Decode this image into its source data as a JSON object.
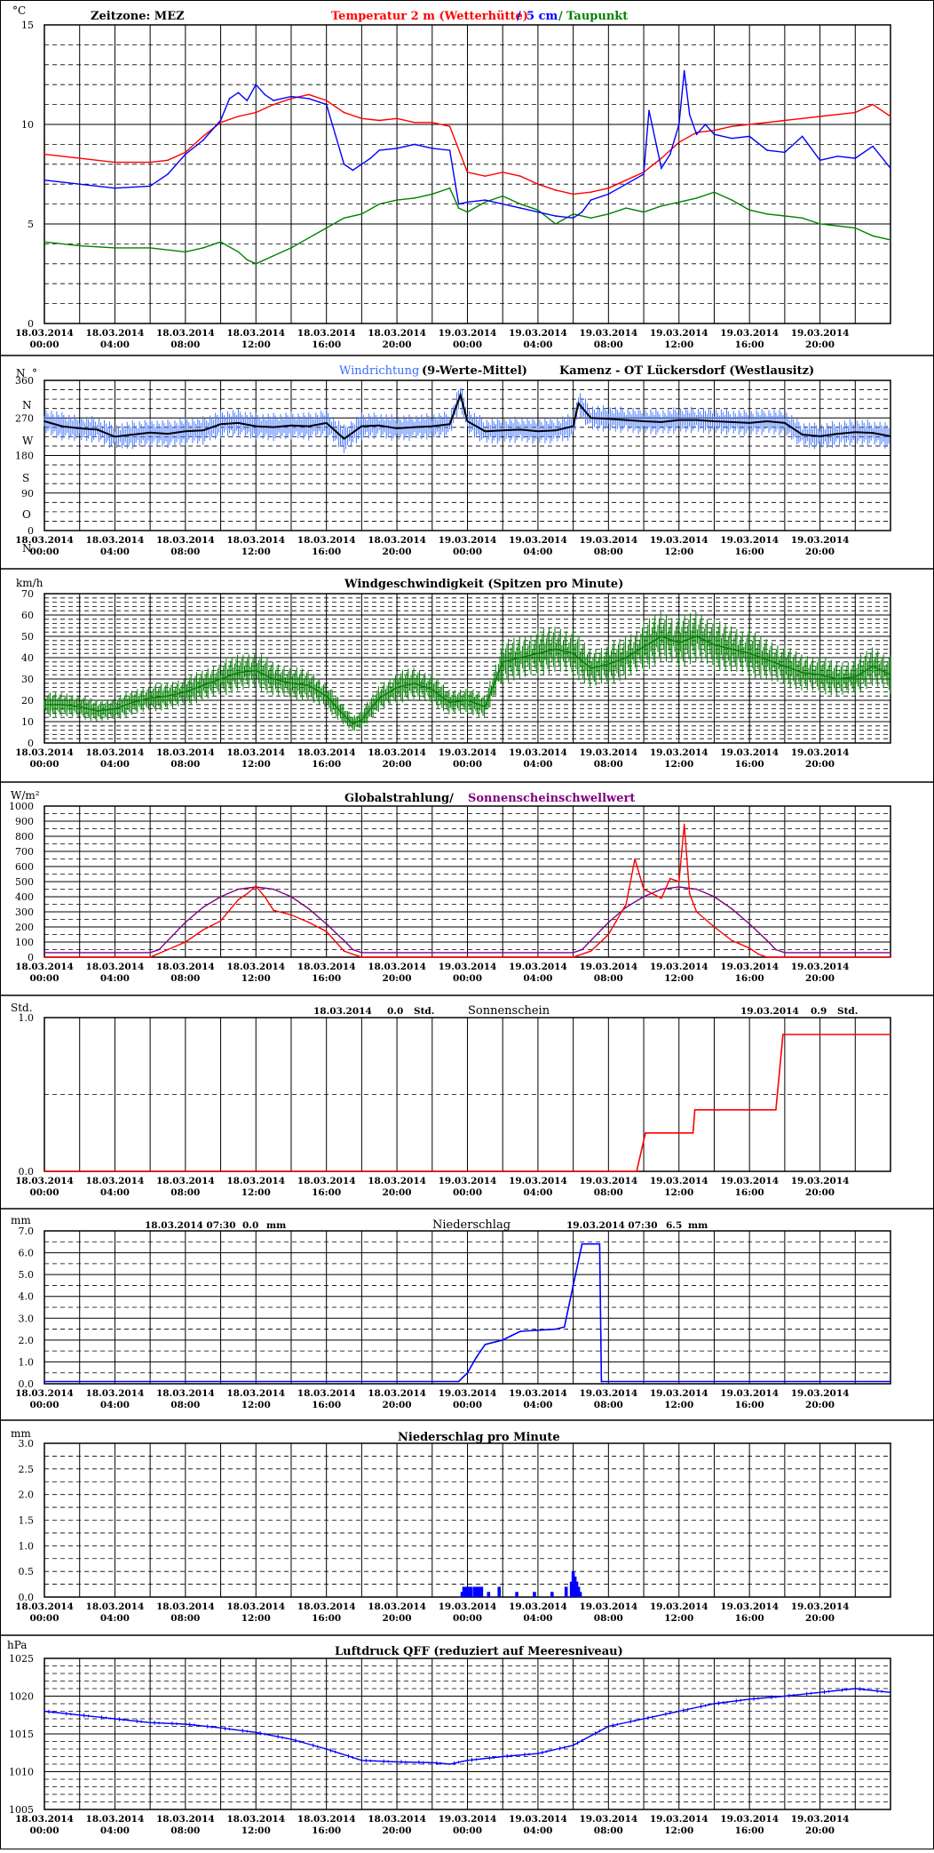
{
  "x_axis": {
    "dates": [
      "18.03.2014",
      "18.03.2014",
      "18.03.2014",
      "18.03.2014",
      "18.03.2014",
      "18.03.2014",
      "19.03.2014",
      "19.03.2014",
      "19.03.2014",
      "19.03.2014",
      "19.03.2014",
      "19.03.2014"
    ],
    "times": [
      "00:00",
      "04:00",
      "08:00",
      "12:00",
      "16:00",
      "20:00",
      "00:00",
      "04:00",
      "08:00",
      "12:00",
      "16:00",
      "20:00"
    ],
    "range_hours": [
      0,
      48
    ]
  },
  "colors": {
    "frame": "#000000",
    "temp_air": "#ff0000",
    "temp_5cm": "#0000ff",
    "dewpoint": "#008000",
    "wind_dir_raw": "#4b7bff",
    "wind_dir_avg": "#000000",
    "wind_speed": "#008000",
    "radiation": "#ff0000",
    "threshold": "#800080",
    "sunshine": "#ff0000",
    "precip": "#0000ff",
    "pressure": "#0000ff"
  },
  "panels": {
    "temperature": {
      "unit": "°C",
      "zone": "Zeitzone: MEZ",
      "title_red": "Temperatur 2 m (Wetterhütte)",
      "title_sep": "/",
      "title_blue": "5 cm",
      "title_sep2": "/",
      "title_green": "Taupunkt",
      "yticks": [
        "15",
        "10",
        "5",
        "0"
      ]
    },
    "wind_direction": {
      "unit": "N",
      "degree": "°",
      "title_blue": "Windrichtung",
      "title_black": "(9-Werte-Mittel)",
      "station": "Kamenz - OT Lückersdorf (Westlausitz)",
      "yticks": [
        "360",
        "270",
        "180",
        "90",
        "0"
      ],
      "compass": [
        "N",
        "W",
        "S",
        "O",
        "N"
      ]
    },
    "wind_speed": {
      "unit": "km/h",
      "title": "Windgeschwindigkeit (Spitzen pro Minute)",
      "yticks": [
        "70",
        "60",
        "50",
        "40",
        "30",
        "20",
        "10",
        "0"
      ]
    },
    "radiation": {
      "unit": "W/m²",
      "title_black": "Globalstrahlung/",
      "title_purple": "Sonnenscheinschwellwert",
      "yticks": [
        "1000",
        "900",
        "800",
        "700",
        "600",
        "500",
        "400",
        "300",
        "200",
        "100",
        "0"
      ]
    },
    "sunshine": {
      "unit": "Std.",
      "title": "Sonnenschein",
      "day1_date": "18.03.2014",
      "day1_value": "0.0",
      "day1_unit": "Std.",
      "day2_date": "19.03.2014",
      "day2_value": "0.9",
      "day2_unit": "Std.",
      "yticks": [
        "1.0",
        "0.0"
      ]
    },
    "precipitation": {
      "unit": "mm",
      "title": "Niederschlag",
      "day1_label": "18.03.2014 07:30",
      "day1_value": "0.0",
      "day1_unit": "mm",
      "day2_label": "19.03.2014 07:30",
      "day2_value": "6.5",
      "day2_unit": "mm",
      "yticks": [
        "7.0",
        "6.0",
        "5.0",
        "4.0",
        "3.0",
        "2.0",
        "1.0",
        "0.0"
      ]
    },
    "precip_minute": {
      "unit": "mm",
      "title": "Niederschlag pro Minute",
      "yticks": [
        "3.0",
        "2.5",
        "2.0",
        "1.5",
        "1.0",
        "0.5",
        "0.0"
      ]
    },
    "pressure": {
      "unit": "hPa",
      "title": "Luftdruck QFF (reduziert auf Meeresniveau)",
      "yticks": [
        "1025",
        "1020",
        "1015",
        "1010",
        "1005"
      ]
    }
  },
  "chart_data": [
    {
      "type": "line",
      "title": "Temperatur 2 m (Wetterhütte) / 5 cm / Taupunkt",
      "ylabel": "°C",
      "ylim": [
        0,
        15
      ],
      "xlim_hours": [
        0,
        48
      ],
      "series": [
        {
          "name": "Temperatur 2 m (Wetterhütte)",
          "x": [
            0,
            2,
            4,
            6,
            7,
            8,
            9,
            10,
            11,
            12,
            13,
            14,
            15,
            16,
            17,
            18,
            19,
            20,
            21,
            22,
            23,
            24,
            25,
            26,
            27,
            28,
            29,
            30,
            31,
            32,
            33,
            34,
            35,
            36,
            37,
            38,
            39,
            40,
            41,
            42,
            43,
            44,
            45,
            46,
            47,
            48
          ],
          "y": [
            8.5,
            8.3,
            8.1,
            8.1,
            8.2,
            8.6,
            9.4,
            10.1,
            10.4,
            10.6,
            11,
            11.3,
            11.5,
            11.2,
            10.6,
            10.3,
            10.2,
            10.3,
            10.1,
            10.1,
            9.9,
            7.6,
            7.4,
            7.6,
            7.4,
            7,
            6.7,
            6.5,
            6.6,
            6.8,
            7.2,
            7.6,
            8.3,
            9.1,
            9.6,
            9.7,
            9.9,
            10,
            10.1,
            10.2,
            10.3,
            10.4,
            10.5,
            10.6,
            11,
            10.4
          ]
        },
        {
          "name": "5 cm",
          "x": [
            0,
            2,
            4,
            6,
            7,
            8,
            9,
            10,
            10.5,
            11,
            11.5,
            12,
            12.5,
            13,
            14,
            15,
            16,
            16.5,
            17,
            17.5,
            18,
            18.5,
            19,
            20,
            21,
            22,
            23,
            23.5,
            24,
            25,
            26,
            27,
            28,
            29,
            30,
            30.5,
            31,
            32,
            33,
            34,
            34.3,
            35,
            35.5,
            36,
            36.3,
            36.6,
            37,
            37.5,
            38,
            39,
            40,
            41,
            42,
            43,
            44,
            45,
            46,
            47,
            48
          ],
          "y": [
            7.2,
            7,
            6.8,
            6.9,
            7.5,
            8.5,
            9.2,
            10.2,
            11.3,
            11.6,
            11.2,
            12,
            11.5,
            11.2,
            11.4,
            11.3,
            11,
            9.5,
            8,
            7.7,
            8,
            8.3,
            8.7,
            8.8,
            9,
            8.8,
            8.7,
            6,
            6.1,
            6.2,
            6,
            5.8,
            5.6,
            5.4,
            5.3,
            5.6,
            6.2,
            6.5,
            7,
            7.5,
            10.7,
            7.8,
            8.5,
            10,
            12.7,
            10.5,
            9.5,
            10,
            9.5,
            9.3,
            9.4,
            8.7,
            8.6,
            9.4,
            8.2,
            8.4,
            8.3,
            8.9,
            7.8
          ]
        },
        {
          "name": "Taupunkt",
          "x": [
            0,
            2,
            4,
            6,
            8,
            9,
            10,
            11,
            11.5,
            12,
            13,
            14,
            15,
            16,
            17,
            18,
            19,
            20,
            21,
            22,
            23,
            23.5,
            24,
            25,
            26,
            27,
            28,
            29,
            30,
            31,
            32,
            33,
            34,
            35,
            36,
            37,
            38,
            39,
            40,
            41,
            42,
            43,
            44,
            45,
            46,
            47,
            48
          ],
          "y": [
            4.1,
            3.9,
            3.8,
            3.8,
            3.6,
            3.8,
            4.1,
            3.6,
            3.2,
            3,
            3.4,
            3.8,
            4.3,
            4.8,
            5.3,
            5.5,
            6,
            6.2,
            6.3,
            6.5,
            6.8,
            5.8,
            5.6,
            6.1,
            6.4,
            6,
            5.7,
            5,
            5.5,
            5.3,
            5.5,
            5.8,
            5.6,
            5.9,
            6.1,
            6.3,
            6.6,
            6.2,
            5.7,
            5.5,
            5.4,
            5.3,
            5,
            4.9,
            4.8,
            4.4,
            4.2
          ]
        }
      ]
    },
    {
      "type": "line",
      "title": "Windrichtung (9-Werte-Mittel)",
      "ylabel": "°",
      "ylim": [
        0,
        360
      ],
      "xlim_hours": [
        0,
        48
      ],
      "series": [
        {
          "name": "9-Werte-Mittel",
          "x": [
            0,
            1,
            2,
            3,
            4,
            5,
            6,
            7,
            8,
            9,
            10,
            11,
            12,
            13,
            14,
            15,
            16,
            17,
            18,
            19,
            20,
            21,
            22,
            23,
            23.6,
            24,
            25,
            26,
            27,
            28,
            29,
            30,
            30.3,
            31,
            32,
            33,
            34,
            35,
            36,
            37,
            38,
            39,
            40,
            41,
            42,
            43,
            44,
            45,
            46,
            47,
            48
          ],
          "y": [
            262,
            250,
            245,
            242,
            225,
            230,
            235,
            232,
            238,
            240,
            255,
            258,
            250,
            248,
            252,
            250,
            258,
            220,
            250,
            252,
            245,
            248,
            250,
            255,
            325,
            262,
            238,
            240,
            242,
            238,
            240,
            250,
            305,
            270,
            268,
            265,
            262,
            260,
            265,
            265,
            262,
            260,
            258,
            262,
            258,
            230,
            226,
            232,
            236,
            234,
            226
          ]
        }
      ]
    },
    {
      "type": "line",
      "title": "Windgeschwindigkeit (Spitzen pro Minute)",
      "ylabel": "km/h",
      "ylim": [
        0,
        70
      ],
      "xlim_hours": [
        0,
        48
      ],
      "series": [
        {
          "name": "Windgeschwindigkeit",
          "x": [
            0,
            1,
            2,
            3,
            4,
            5,
            6,
            7,
            8,
            9,
            10,
            11,
            12,
            13,
            14,
            15,
            16,
            17,
            17.5,
            18,
            19,
            20,
            21,
            22,
            23,
            24,
            25,
            26,
            27,
            28,
            29,
            30,
            31,
            32,
            33,
            34,
            35,
            36,
            37,
            38,
            39,
            40,
            41,
            42,
            43,
            44,
            45,
            46,
            47,
            48
          ],
          "y": [
            18,
            18,
            17,
            15,
            16,
            19,
            21,
            22,
            24,
            27,
            30,
            33,
            34,
            30,
            28,
            27,
            22,
            13,
            9,
            11,
            21,
            26,
            28,
            25,
            19,
            20,
            17,
            38,
            40,
            42,
            44,
            42,
            35,
            37,
            40,
            45,
            50,
            47,
            50,
            46,
            44,
            42,
            39,
            36,
            33,
            32,
            30,
            31,
            36,
            32
          ]
        }
      ]
    },
    {
      "type": "line",
      "title": "Globalstrahlung/ Sonnenscheinschwellwert",
      "ylabel": "W/m²",
      "ylim": [
        0,
        1000
      ],
      "xlim_hours": [
        0,
        48
      ],
      "series": [
        {
          "name": "Globalstrahlung",
          "x": [
            0,
            6,
            7,
            8,
            9,
            10,
            11,
            11.5,
            12,
            12.5,
            13,
            14,
            15,
            16,
            17,
            18,
            24,
            30,
            31,
            32,
            33,
            33.5,
            34,
            35,
            35.5,
            36,
            36.3,
            36.6,
            37,
            38,
            39,
            40,
            40.5,
            41,
            48
          ],
          "y": [
            0,
            0,
            50,
            100,
            180,
            240,
            380,
            420,
            470,
            400,
            310,
            280,
            230,
            170,
            40,
            0,
            0,
            0,
            40,
            150,
            350,
            650,
            450,
            390,
            520,
            500,
            880,
            420,
            300,
            200,
            110,
            60,
            20,
            0,
            0
          ]
        },
        {
          "name": "Sonnenscheinschwellwert",
          "x": [
            0,
            6,
            6.5,
            7,
            8,
            9,
            10,
            11,
            12,
            13,
            14,
            15,
            16,
            17,
            17.5,
            18,
            24,
            30,
            30.5,
            31,
            32,
            33,
            34,
            35,
            36,
            37,
            38,
            39,
            40,
            41,
            41.5,
            42,
            48
          ],
          "y": [
            30,
            30,
            50,
            110,
            230,
            330,
            400,
            450,
            465,
            450,
            400,
            320,
            220,
            110,
            50,
            30,
            30,
            30,
            50,
            110,
            230,
            330,
            400,
            450,
            465,
            450,
            400,
            320,
            220,
            110,
            50,
            30,
            30
          ]
        }
      ]
    },
    {
      "type": "line",
      "title": "Sonnenschein",
      "ylabel": "Std.",
      "ylim": [
        0,
        1
      ],
      "xlim_hours": [
        0,
        48
      ],
      "series": [
        {
          "name": "Sonnenschein",
          "x": [
            0,
            33.6,
            34.1,
            36.8,
            36.9,
            41.5,
            41.9,
            48
          ],
          "y": [
            0,
            0,
            0.25,
            0.25,
            0.4,
            0.4,
            0.89,
            0.89
          ]
        }
      ]
    },
    {
      "type": "line",
      "title": "Niederschlag",
      "ylabel": "mm",
      "ylim": [
        0,
        7
      ],
      "xlim_hours": [
        0,
        48
      ],
      "series": [
        {
          "name": "Niederschlag",
          "x": [
            0,
            23.5,
            24,
            24.5,
            25,
            25.5,
            26,
            26.5,
            27,
            29,
            29.5,
            30,
            30.5,
            31.5,
            31.6,
            31.65,
            48
          ],
          "y": [
            0.1,
            0.1,
            0.5,
            1.2,
            1.8,
            1.9,
            2,
            2.2,
            2.4,
            2.5,
            2.6,
            4.5,
            6.4,
            6.4,
            0.1,
            0.1,
            0.1
          ]
        }
      ]
    },
    {
      "type": "bar",
      "title": "Niederschlag pro Minute",
      "ylabel": "mm",
      "ylim": [
        0,
        3
      ],
      "xlim_hours": [
        0,
        48
      ],
      "series": [
        {
          "name": "Niederschlag pro Minute",
          "x": [
            23.7,
            23.8,
            23.9,
            24,
            24.1,
            24.2,
            24.4,
            24.5,
            24.6,
            24.7,
            24.8,
            25.2,
            25.8,
            26.8,
            27.8,
            28.8,
            29.6,
            29.9,
            30,
            30.1,
            30.2,
            30.3,
            30.4
          ],
          "y": [
            0.1,
            0.2,
            0.2,
            0.2,
            0.2,
            0.2,
            0.2,
            0.2,
            0.2,
            0.2,
            0.2,
            0.1,
            0.2,
            0.1,
            0.1,
            0.1,
            0.2,
            0.3,
            0.5,
            0.4,
            0.3,
            0.2,
            0.1
          ]
        }
      ]
    },
    {
      "type": "line",
      "title": "Luftdruck QFF (reduziert auf Meeresniveau)",
      "ylabel": "hPa",
      "ylim": [
        1005,
        1025
      ],
      "xlim_hours": [
        0,
        48
      ],
      "series": [
        {
          "name": "Luftdruck QFF",
          "x": [
            0,
            2,
            4,
            6,
            8,
            10,
            12,
            14,
            16,
            18,
            20,
            22,
            23,
            24,
            26,
            28,
            30,
            32,
            34,
            36,
            38,
            40,
            42,
            44,
            46,
            48
          ],
          "y": [
            1018,
            1017.5,
            1017,
            1016.5,
            1016.3,
            1015.8,
            1015.2,
            1014.3,
            1013,
            1011.5,
            1011.3,
            1011.2,
            1011,
            1011.5,
            1012,
            1012.4,
            1013.5,
            1016,
            1017,
            1018,
            1019,
            1019.6,
            1020,
            1020.5,
            1021,
            1020.5
          ]
        }
      ]
    }
  ]
}
